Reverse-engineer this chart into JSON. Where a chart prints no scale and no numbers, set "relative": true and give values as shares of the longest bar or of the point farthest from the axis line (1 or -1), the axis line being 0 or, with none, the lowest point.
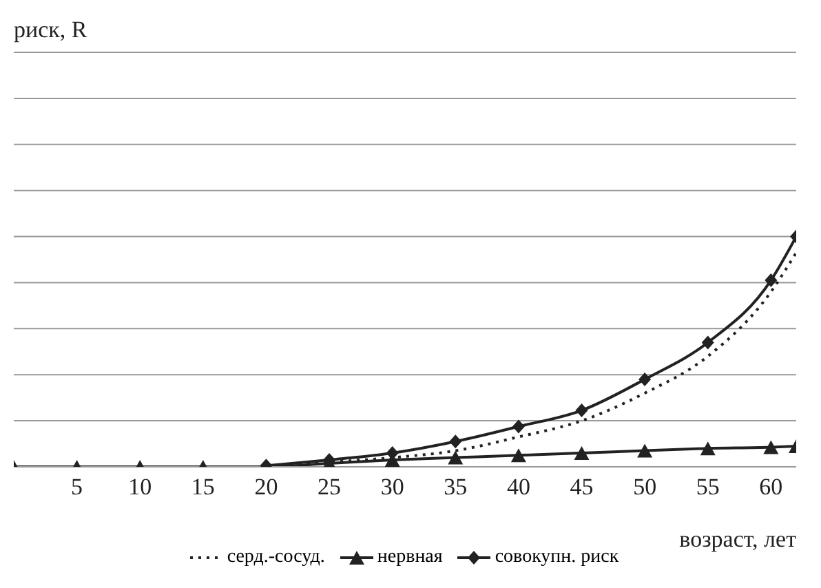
{
  "chart_data": {
    "type": "line",
    "relative": true,
    "annotations": [
      "риск, R"
    ],
    "xlabel": "возраст, лет",
    "xlim": [
      0,
      62
    ],
    "xticks": [
      5,
      10,
      15,
      20,
      25,
      30,
      35,
      40,
      45,
      50,
      55,
      60
    ],
    "grid": "y",
    "legend": "bottom",
    "series": [
      {
        "name": "серд.-сосуд.",
        "color": "#222222",
        "line_style": "dotted",
        "marker": "none",
        "x": [
          20,
          25,
          30,
          35,
          40,
          45,
          50,
          55,
          60,
          62
        ],
        "values": [
          0,
          0.02,
          0.04,
          0.07,
          0.13,
          0.2,
          0.32,
          0.48,
          0.76,
          0.93
        ]
      },
      {
        "name": "нервная",
        "color": "#222222",
        "line_style": "solid",
        "marker": "triangle",
        "x": [
          0,
          5,
          10,
          15,
          20,
          25,
          30,
          35,
          40,
          45,
          50,
          55,
          60,
          62
        ],
        "values": [
          0,
          0,
          0,
          0,
          0,
          0.015,
          0.03,
          0.04,
          0.05,
          0.06,
          0.07,
          0.08,
          0.085,
          0.09
        ]
      },
      {
        "name": "совокупн. риск",
        "color": "#222222",
        "line_style": "solid",
        "marker": "diamond",
        "x": [
          20,
          25,
          30,
          35,
          40,
          45,
          50,
          55,
          60,
          62
        ],
        "values": [
          0.005,
          0.03,
          0.06,
          0.11,
          0.175,
          0.245,
          0.38,
          0.54,
          0.81,
          1
        ]
      }
    ]
  }
}
